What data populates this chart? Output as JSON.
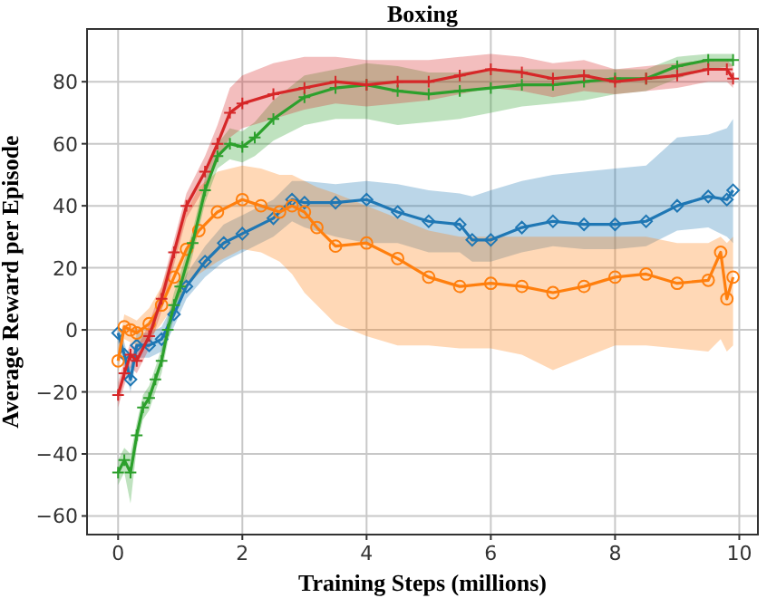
{
  "chart_data": {
    "type": "line",
    "title": "Boxing",
    "xlabel": "Training Steps (millions)",
    "ylabel": "Average Reward per Episode",
    "xlim": [
      -0.5,
      10.3
    ],
    "ylim": [
      -66,
      97
    ],
    "xticks": [
      0,
      2,
      4,
      6,
      8,
      10
    ],
    "yticks": [
      -60,
      -40,
      -20,
      0,
      20,
      40,
      60,
      80
    ],
    "grid": true,
    "series": [
      {
        "color": "#1f77b4",
        "marker": "diamond",
        "x": [
          0,
          0.1,
          0.2,
          0.3,
          0.5,
          0.7,
          0.9,
          1.1,
          1.4,
          1.7,
          2,
          2.5,
          2.8,
          3,
          3.5,
          4,
          4.5,
          5,
          5.5,
          5.7,
          6,
          6.5,
          7,
          7.5,
          8,
          8.5,
          9,
          9.5,
          9.8,
          9.9
        ],
        "values": [
          -1,
          -8,
          -16,
          -5,
          -5,
          -3,
          5,
          14,
          22,
          28,
          31,
          36,
          42,
          41,
          41,
          42,
          38,
          35,
          34,
          29,
          29,
          33,
          35,
          34,
          34,
          35,
          40,
          43,
          42,
          45
        ],
        "lower": [
          -4,
          -12,
          -20,
          -9,
          -9,
          -7,
          1,
          10,
          17,
          22,
          25,
          30,
          35,
          33,
          30,
          28,
          28,
          25,
          25,
          22,
          22,
          25,
          27,
          26,
          26,
          27,
          32,
          33,
          30,
          28
        ],
        "upper": [
          2,
          -4,
          -12,
          -1,
          -1,
          1,
          9,
          18,
          27,
          34,
          37,
          42,
          48,
          48,
          47,
          48,
          47,
          45,
          44,
          43,
          45,
          48,
          50,
          51,
          52,
          53,
          62,
          63,
          65,
          68
        ]
      },
      {
        "color": "#ff7f0e",
        "marker": "circle",
        "x": [
          0,
          0.1,
          0.2,
          0.3,
          0.5,
          0.7,
          0.9,
          1.1,
          1.3,
          1.6,
          2,
          2.3,
          2.6,
          2.8,
          3,
          3.2,
          3.5,
          4,
          4.5,
          5,
          5.5,
          6,
          6.5,
          7,
          7.5,
          8,
          8.5,
          9,
          9.5,
          9.7,
          9.8,
          9.9
        ],
        "values": [
          -10,
          1,
          0,
          -1,
          2,
          8,
          17,
          26,
          32,
          38,
          42,
          40,
          38,
          40,
          38,
          33,
          27,
          28,
          23,
          17,
          14,
          15,
          14,
          12,
          14,
          17,
          18,
          15,
          16,
          25,
          10,
          17
        ],
        "lower": [
          -14,
          -3,
          -4,
          -5,
          -3,
          2,
          8,
          14,
          18,
          22,
          26,
          25,
          22,
          18,
          12,
          8,
          2,
          -2,
          -5,
          -5,
          -6,
          -6,
          -8,
          -13,
          -9,
          -5,
          -5,
          -6,
          -7,
          -3,
          -7,
          -5
        ],
        "upper": [
          -6,
          5,
          4,
          3,
          7,
          14,
          26,
          38,
          46,
          51,
          53,
          52,
          50,
          50,
          48,
          46,
          44,
          40,
          36,
          32,
          30,
          30,
          30,
          30,
          30,
          30,
          30,
          28,
          28,
          30,
          28,
          30
        ]
      },
      {
        "color": "#2ca02c",
        "marker": "cross",
        "x": [
          0,
          0.1,
          0.2,
          0.3,
          0.4,
          0.5,
          0.6,
          0.7,
          0.8,
          0.9,
          1,
          1.2,
          1.4,
          1.6,
          1.8,
          2,
          2.2,
          2.5,
          3,
          3.5,
          4,
          4.5,
          5,
          5.5,
          6,
          6.5,
          7,
          7.5,
          8,
          8.5,
          9,
          9.5,
          9.9
        ],
        "values": [
          -46,
          -42,
          -46,
          -34,
          -25,
          -22,
          -16,
          -10,
          0,
          8,
          14,
          28,
          45,
          56,
          60,
          59,
          62,
          68,
          75,
          78,
          79,
          77,
          76,
          77,
          78,
          79,
          79,
          80,
          81,
          81,
          85,
          87,
          87
        ],
        "lower": [
          -50,
          -46,
          -56,
          -38,
          -29,
          -26,
          -20,
          -14,
          -4,
          4,
          10,
          24,
          41,
          52,
          55,
          54,
          56,
          61,
          66,
          68,
          68,
          66,
          67,
          68,
          70,
          72,
          73,
          74,
          76,
          77,
          81,
          84,
          85
        ],
        "upper": [
          -42,
          -38,
          -40,
          -30,
          -21,
          -18,
          -12,
          -6,
          4,
          12,
          18,
          32,
          49,
          60,
          65,
          64,
          67,
          74,
          82,
          84,
          86,
          85,
          83,
          83,
          84,
          84,
          84,
          84,
          84,
          84,
          88,
          89,
          89
        ]
      },
      {
        "color": "#d62728",
        "marker": "cross",
        "x": [
          0,
          0.1,
          0.2,
          0.3,
          0.5,
          0.7,
          0.9,
          1.1,
          1.4,
          1.6,
          1.8,
          2,
          2.5,
          3,
          3.5,
          4,
          4.5,
          5,
          5.5,
          6,
          6.5,
          7,
          7.5,
          8,
          8.5,
          9,
          9.5,
          9.8,
          9.9
        ],
        "values": [
          -21,
          -14,
          -8,
          -10,
          -2,
          10,
          25,
          40,
          51,
          60,
          70,
          73,
          76,
          78,
          80,
          79,
          80,
          80,
          82,
          84,
          83,
          81,
          82,
          80,
          81,
          82,
          84,
          84,
          81
        ],
        "lower": [
          -25,
          -18,
          -12,
          -14,
          -6,
          6,
          21,
          36,
          46,
          54,
          62,
          65,
          68,
          71,
          73,
          72,
          73,
          74,
          76,
          78,
          77,
          75,
          77,
          76,
          77,
          78,
          80,
          80,
          78
        ],
        "upper": [
          -17,
          -10,
          -4,
          -6,
          2,
          14,
          29,
          44,
          56,
          66,
          78,
          82,
          86,
          88,
          88,
          87,
          87,
          87,
          88,
          89,
          88,
          86,
          87,
          84,
          85,
          86,
          87,
          87,
          85
        ]
      }
    ]
  }
}
